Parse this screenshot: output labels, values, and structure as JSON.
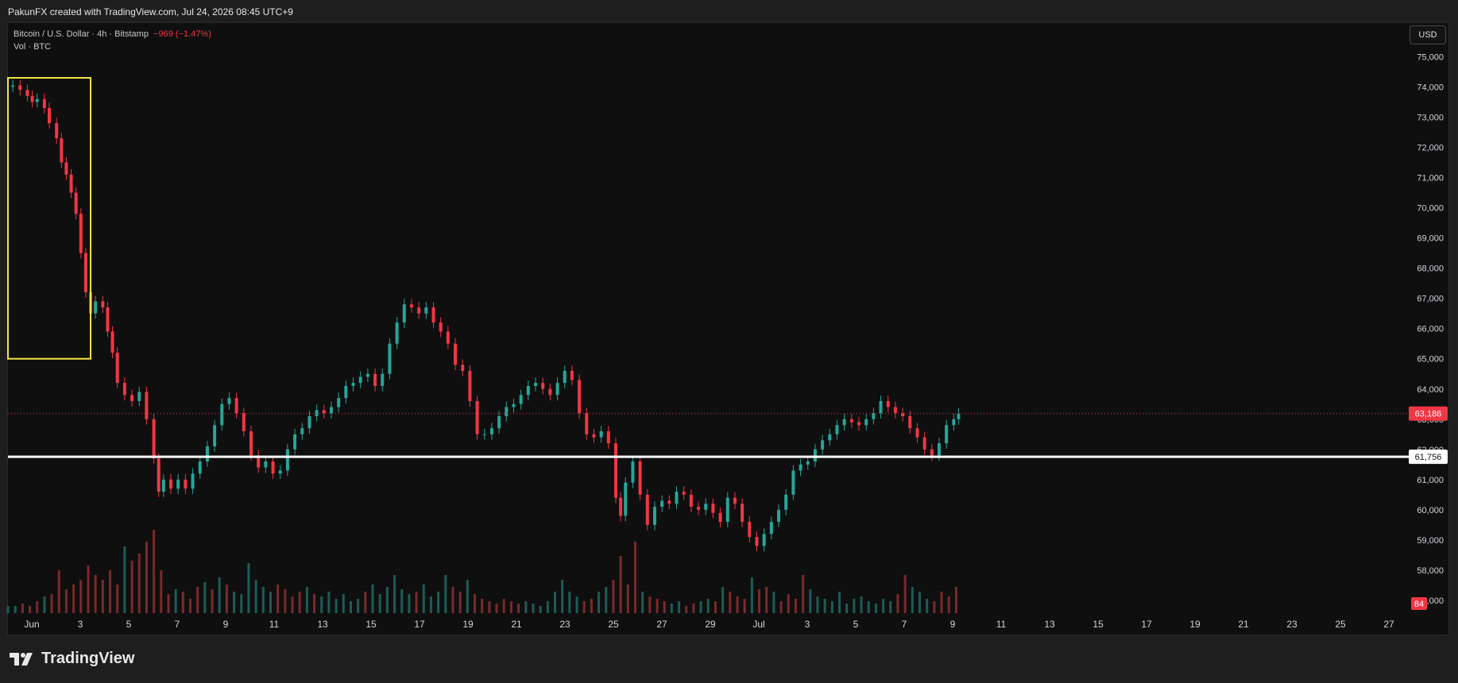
{
  "header": {
    "title": "PakunFX created with TradingView.com, Jul 24, 2026 08:45 UTC+9"
  },
  "legend": {
    "symbol": "Bitcoin / U.S. Dollar · 4h · Bitstamp",
    "change": "−969 (−1.47%)",
    "volume_label": "Vol · BTC"
  },
  "currency_button": "USD",
  "footer": {
    "brand": "TradingView",
    "logo_icon": "tradingview-logo-icon"
  },
  "colors": {
    "up": "#26a69a",
    "down": "#f23645",
    "vol_up": "#1d5c57",
    "vol_down": "#7a2a2a",
    "box": "#f5e642",
    "support": "#ffffff",
    "price_tag": "#f23645"
  },
  "chart_data": {
    "type": "candlestick",
    "symbol": "BTCUSD",
    "interval": "4h",
    "ylim": [
      56500,
      75300
    ],
    "y_ticks": [
      "75,000",
      "74,000",
      "73,000",
      "72,000",
      "71,000",
      "70,000",
      "69,000",
      "68,000",
      "67,000",
      "66,000",
      "65,000",
      "64,000",
      "63,000",
      "62,000",
      "61,000",
      "60,000",
      "59,000",
      "58,000",
      "57,000"
    ],
    "x_ticks": [
      "Jun",
      "3",
      "5",
      "7",
      "9",
      "11",
      "13",
      "15",
      "17",
      "19",
      "21",
      "23",
      "25",
      "27",
      "29",
      "Jul",
      "3",
      "5",
      "7",
      "9",
      "11",
      "13",
      "15",
      "17",
      "19",
      "21",
      "23",
      "25",
      "27"
    ],
    "current_price": {
      "value": 63186,
      "label": "63,186"
    },
    "support_level": {
      "value": 61756,
      "label": "61,756"
    },
    "volume_label": {
      "value": 84,
      "label": "84"
    },
    "highlight_box": {
      "x_start_day": 0.0,
      "x_end_day": 3.4,
      "y_low": 65000,
      "y_high": 74300
    },
    "candle_path": [
      [
        0,
        74000
      ],
      [
        0.2,
        74050
      ],
      [
        0.5,
        73900
      ],
      [
        0.8,
        73700
      ],
      [
        1.0,
        73500
      ],
      [
        1.2,
        73600
      ],
      [
        1.5,
        73300
      ],
      [
        1.7,
        72800
      ],
      [
        2.0,
        72300
      ],
      [
        2.2,
        71500
      ],
      [
        2.4,
        71100
      ],
      [
        2.6,
        70500
      ],
      [
        2.8,
        69800
      ],
      [
        3.0,
        68500
      ],
      [
        3.2,
        67200
      ],
      [
        3.4,
        66500
      ],
      [
        3.6,
        66900
      ],
      [
        3.9,
        66700
      ],
      [
        4.1,
        65900
      ],
      [
        4.3,
        65200
      ],
      [
        4.5,
        64200
      ],
      [
        4.8,
        63800
      ],
      [
        5.1,
        63600
      ],
      [
        5.4,
        63900
      ],
      [
        5.7,
        63000
      ],
      [
        6.0,
        61700
      ],
      [
        6.2,
        60600
      ],
      [
        6.4,
        61000
      ],
      [
        6.7,
        60700
      ],
      [
        7.0,
        61000
      ],
      [
        7.3,
        60700
      ],
      [
        7.6,
        61200
      ],
      [
        7.9,
        61600
      ],
      [
        8.2,
        62100
      ],
      [
        8.5,
        62800
      ],
      [
        8.8,
        63500
      ],
      [
        9.1,
        63700
      ],
      [
        9.4,
        63200
      ],
      [
        9.7,
        62600
      ],
      [
        10.0,
        61800
      ],
      [
        10.3,
        61400
      ],
      [
        10.6,
        61600
      ],
      [
        10.9,
        61200
      ],
      [
        11.2,
        61300
      ],
      [
        11.5,
        62000
      ],
      [
        11.8,
        62500
      ],
      [
        12.1,
        62700
      ],
      [
        12.4,
        63100
      ],
      [
        12.7,
        63300
      ],
      [
        13.0,
        63200
      ],
      [
        13.3,
        63400
      ],
      [
        13.6,
        63700
      ],
      [
        13.9,
        64100
      ],
      [
        14.2,
        64200
      ],
      [
        14.5,
        64400
      ],
      [
        14.8,
        64500
      ],
      [
        15.1,
        64100
      ],
      [
        15.4,
        64500
      ],
      [
        15.7,
        65500
      ],
      [
        16.0,
        66200
      ],
      [
        16.3,
        66800
      ],
      [
        16.6,
        66700
      ],
      [
        16.9,
        66500
      ],
      [
        17.2,
        66700
      ],
      [
        17.5,
        66200
      ],
      [
        17.8,
        65900
      ],
      [
        18.1,
        65500
      ],
      [
        18.4,
        64800
      ],
      [
        18.7,
        64600
      ],
      [
        19.0,
        63600
      ],
      [
        19.3,
        62500
      ],
      [
        19.6,
        62500
      ],
      [
        19.9,
        62700
      ],
      [
        20.2,
        63100
      ],
      [
        20.5,
        63400
      ],
      [
        20.8,
        63500
      ],
      [
        21.1,
        63800
      ],
      [
        21.4,
        64100
      ],
      [
        21.7,
        64200
      ],
      [
        22.0,
        64000
      ],
      [
        22.3,
        63800
      ],
      [
        22.6,
        64200
      ],
      [
        22.9,
        64600
      ],
      [
        23.2,
        64300
      ],
      [
        23.5,
        63200
      ],
      [
        23.8,
        62500
      ],
      [
        24.1,
        62400
      ],
      [
        24.4,
        62600
      ],
      [
        24.7,
        62200
      ],
      [
        25.0,
        60400
      ],
      [
        25.2,
        59800
      ],
      [
        25.4,
        60900
      ],
      [
        25.7,
        61600
      ],
      [
        26.0,
        60500
      ],
      [
        26.3,
        59500
      ],
      [
        26.6,
        60100
      ],
      [
        26.9,
        60300
      ],
      [
        27.2,
        60200
      ],
      [
        27.5,
        60600
      ],
      [
        27.8,
        60500
      ],
      [
        28.1,
        60100
      ],
      [
        28.4,
        60000
      ],
      [
        28.7,
        60200
      ],
      [
        29.0,
        59900
      ],
      [
        29.3,
        59600
      ],
      [
        29.6,
        60400
      ],
      [
        29.9,
        60200
      ],
      [
        30.2,
        59600
      ],
      [
        30.5,
        59100
      ],
      [
        30.8,
        58800
      ],
      [
        31.1,
        59200
      ],
      [
        31.4,
        59600
      ],
      [
        31.7,
        60000
      ],
      [
        32.0,
        60500
      ],
      [
        32.3,
        61300
      ],
      [
        32.6,
        61500
      ],
      [
        32.9,
        61600
      ],
      [
        33.2,
        62000
      ],
      [
        33.5,
        62300
      ],
      [
        33.8,
        62500
      ],
      [
        34.1,
        62800
      ],
      [
        34.4,
        63000
      ],
      [
        34.7,
        62900
      ],
      [
        35.0,
        62800
      ],
      [
        35.3,
        63000
      ],
      [
        35.6,
        63200
      ],
      [
        35.9,
        63600
      ],
      [
        36.2,
        63400
      ],
      [
        36.5,
        63200
      ],
      [
        36.8,
        63100
      ],
      [
        37.1,
        62700
      ],
      [
        37.4,
        62400
      ],
      [
        37.7,
        62000
      ],
      [
        38.0,
        61800
      ],
      [
        38.3,
        62200
      ],
      [
        38.6,
        62800
      ],
      [
        38.9,
        63000
      ],
      [
        39.1,
        63186
      ]
    ],
    "volume": [
      [
        0,
        3
      ],
      [
        0.3,
        3
      ],
      [
        0.6,
        4
      ],
      [
        0.9,
        3
      ],
      [
        1.2,
        5
      ],
      [
        1.5,
        7
      ],
      [
        1.8,
        8
      ],
      [
        2.1,
        18
      ],
      [
        2.4,
        10
      ],
      [
        2.7,
        12
      ],
      [
        3.0,
        14
      ],
      [
        3.3,
        20
      ],
      [
        3.6,
        16
      ],
      [
        3.9,
        14
      ],
      [
        4.2,
        18
      ],
      [
        4.5,
        12
      ],
      [
        4.8,
        28
      ],
      [
        5.1,
        22
      ],
      [
        5.4,
        25
      ],
      [
        5.7,
        30
      ],
      [
        6.0,
        35
      ],
      [
        6.3,
        18
      ],
      [
        6.6,
        8
      ],
      [
        6.9,
        10
      ],
      [
        7.2,
        9
      ],
      [
        7.5,
        6
      ],
      [
        7.8,
        11
      ],
      [
        8.1,
        13
      ],
      [
        8.4,
        10
      ],
      [
        8.7,
        15
      ],
      [
        9.0,
        12
      ],
      [
        9.3,
        9
      ],
      [
        9.6,
        8
      ],
      [
        9.9,
        21
      ],
      [
        10.2,
        14
      ],
      [
        10.5,
        11
      ],
      [
        10.8,
        9
      ],
      [
        11.1,
        12
      ],
      [
        11.4,
        10
      ],
      [
        11.7,
        7
      ],
      [
        12.0,
        9
      ],
      [
        12.3,
        11
      ],
      [
        12.6,
        8
      ],
      [
        12.9,
        7
      ],
      [
        13.2,
        9
      ],
      [
        13.5,
        6
      ],
      [
        13.8,
        8
      ],
      [
        14.1,
        5
      ],
      [
        14.4,
        6
      ],
      [
        14.7,
        9
      ],
      [
        15.0,
        12
      ],
      [
        15.3,
        8
      ],
      [
        15.6,
        11
      ],
      [
        15.9,
        16
      ],
      [
        16.2,
        10
      ],
      [
        16.5,
        8
      ],
      [
        16.8,
        9
      ],
      [
        17.1,
        12
      ],
      [
        17.4,
        7
      ],
      [
        17.7,
        9
      ],
      [
        18.0,
        16
      ],
      [
        18.3,
        11
      ],
      [
        18.6,
        9
      ],
      [
        18.9,
        14
      ],
      [
        19.2,
        8
      ],
      [
        19.5,
        6
      ],
      [
        19.8,
        5
      ],
      [
        20.1,
        4
      ],
      [
        20.4,
        6
      ],
      [
        20.7,
        5
      ],
      [
        21.0,
        4
      ],
      [
        21.3,
        5
      ],
      [
        21.6,
        4
      ],
      [
        21.9,
        3
      ],
      [
        22.2,
        5
      ],
      [
        22.5,
        9
      ],
      [
        22.8,
        14
      ],
      [
        23.1,
        9
      ],
      [
        23.4,
        7
      ],
      [
        23.7,
        5
      ],
      [
        24.0,
        6
      ],
      [
        24.3,
        9
      ],
      [
        24.6,
        11
      ],
      [
        24.9,
        14
      ],
      [
        25.2,
        24
      ],
      [
        25.5,
        12
      ],
      [
        25.8,
        30
      ],
      [
        26.1,
        9
      ],
      [
        26.4,
        7
      ],
      [
        26.7,
        6
      ],
      [
        27.0,
        5
      ],
      [
        27.3,
        4
      ],
      [
        27.6,
        5
      ],
      [
        27.9,
        3
      ],
      [
        28.2,
        4
      ],
      [
        28.5,
        5
      ],
      [
        28.8,
        6
      ],
      [
        29.1,
        5
      ],
      [
        29.4,
        11
      ],
      [
        29.7,
        9
      ],
      [
        30.0,
        7
      ],
      [
        30.3,
        6
      ],
      [
        30.6,
        15
      ],
      [
        30.9,
        10
      ],
      [
        31.2,
        11
      ],
      [
        31.5,
        9
      ],
      [
        31.8,
        5
      ],
      [
        32.1,
        8
      ],
      [
        32.4,
        6
      ],
      [
        32.7,
        16
      ],
      [
        33.0,
        10
      ],
      [
        33.3,
        7
      ],
      [
        33.6,
        6
      ],
      [
        33.9,
        5
      ],
      [
        34.2,
        9
      ],
      [
        34.5,
        4
      ],
      [
        34.8,
        6
      ],
      [
        35.1,
        7
      ],
      [
        35.4,
        5
      ],
      [
        35.7,
        4
      ],
      [
        36.0,
        6
      ],
      [
        36.3,
        5
      ],
      [
        36.6,
        8
      ],
      [
        36.9,
        16
      ],
      [
        37.2,
        11
      ],
      [
        37.5,
        9
      ],
      [
        37.8,
        6
      ],
      [
        38.1,
        5
      ],
      [
        38.4,
        9
      ],
      [
        38.7,
        7
      ],
      [
        39.0,
        11
      ]
    ]
  }
}
